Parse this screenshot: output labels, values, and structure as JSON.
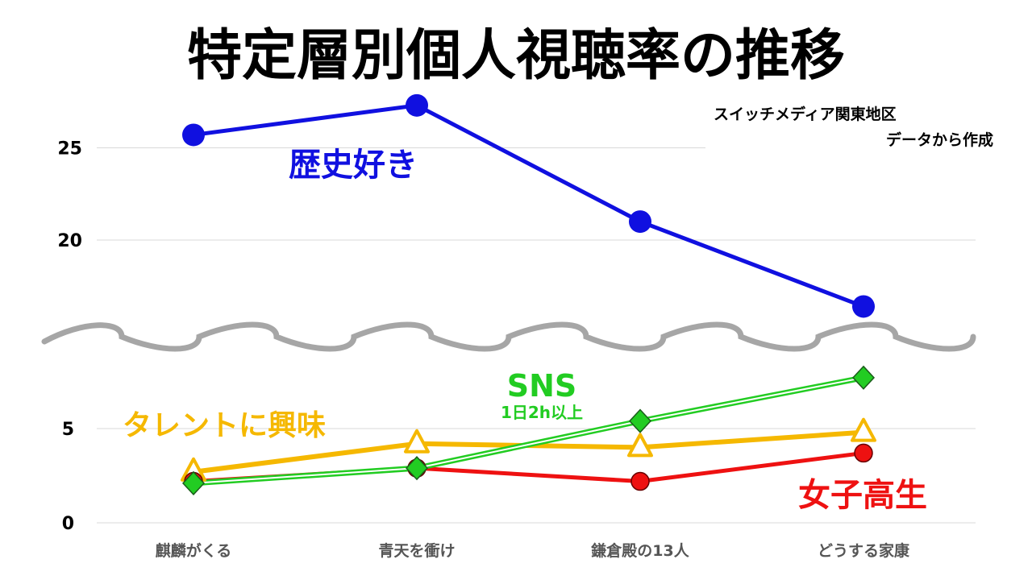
{
  "chart_data": {
    "type": "line",
    "title": "特定層別個人視聴率の推移",
    "source_note": [
      "スイッチメディア関東地区",
      "データから作成"
    ],
    "categories": [
      "麒麟がくる",
      "青天を衝け",
      "鎌倉殿の13人",
      "どうする家康"
    ],
    "y_ticks_upper": [
      "25",
      "20"
    ],
    "y_ticks_lower": [
      "5",
      "0"
    ],
    "axis_break": true,
    "grid": true,
    "series": [
      {
        "name": "歴史好き",
        "sublabel": "",
        "color": "#1010e0",
        "marker": "circle",
        "values": [
          25.7,
          27.3,
          21.0,
          16.4
        ]
      },
      {
        "name": "タレントに興味",
        "sublabel": "",
        "color": "#f5b800",
        "marker": "triangle",
        "values": [
          2.7,
          4.2,
          4.0,
          4.8
        ]
      },
      {
        "name": "SNS",
        "sublabel": "1日2h以上",
        "color": "#22cc22",
        "marker": "diamond",
        "values": [
          2.1,
          2.9,
          5.4,
          7.7
        ]
      },
      {
        "name": "女子高生",
        "sublabel": "",
        "color": "#ee1111",
        "marker": "circle",
        "values": [
          2.2,
          2.9,
          2.2,
          3.7
        ]
      }
    ]
  }
}
